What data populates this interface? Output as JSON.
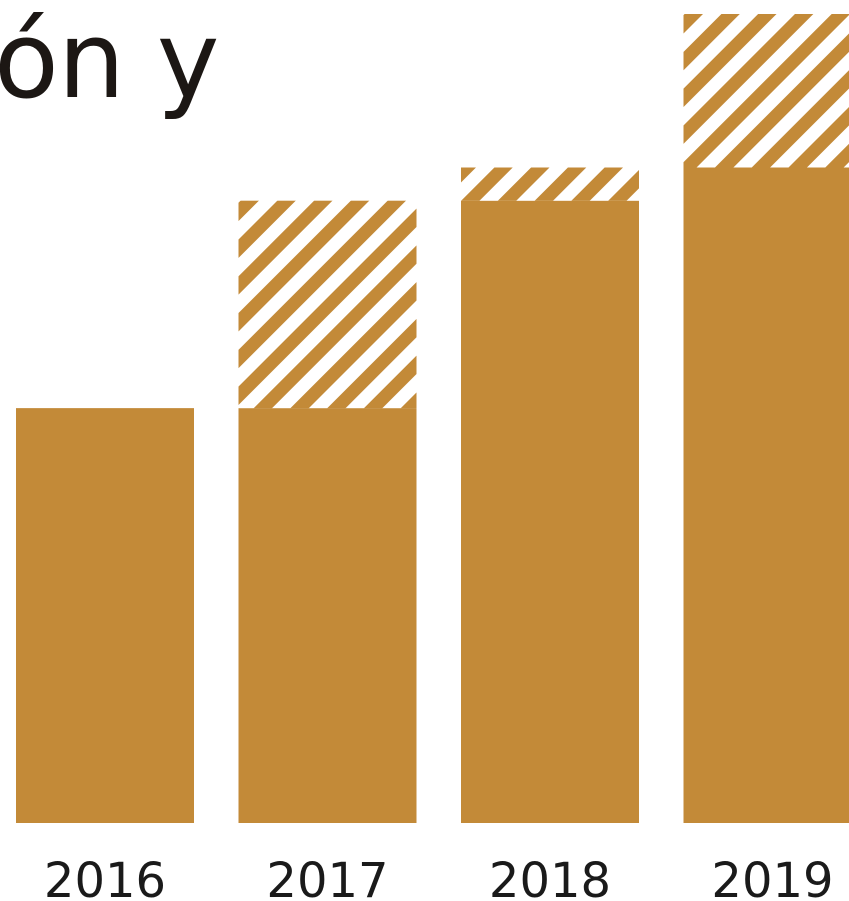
{
  "title_fragment": "ón y",
  "colors": {
    "bar": "#C38A38",
    "stripe_gap": "#ffffff"
  },
  "chart_data": {
    "type": "bar",
    "stacked": true,
    "categories": [
      "2016",
      "2017",
      "2018",
      "2019"
    ],
    "series": [
      {
        "pattern": "solid",
        "values": [
          100,
          100,
          150,
          158
        ]
      },
      {
        "pattern": "hatched",
        "values": [
          0,
          50,
          8,
          37
        ]
      }
    ],
    "ylim": [
      0,
      200
    ],
    "grid": false,
    "legend": "none"
  }
}
